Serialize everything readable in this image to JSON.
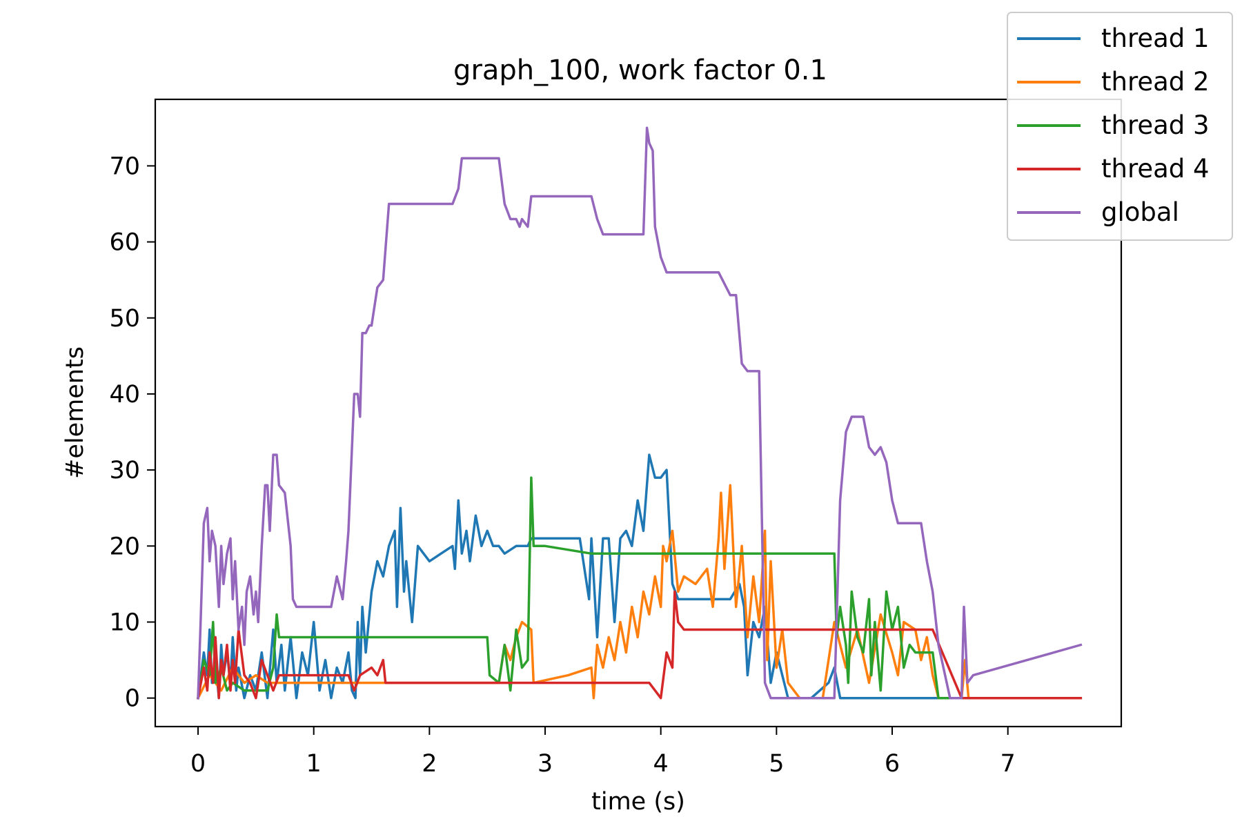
{
  "chart_data": {
    "type": "line",
    "title": "graph_100, work factor 0.1",
    "xlabel": "time (s)",
    "ylabel": "#elements",
    "xlim": [
      -0.37,
      7.98
    ],
    "ylim": [
      -3.75,
      78.75
    ],
    "xticks": [
      0,
      1,
      2,
      3,
      4,
      5,
      6,
      7
    ],
    "yticks": [
      0,
      10,
      20,
      30,
      40,
      50,
      60,
      70
    ],
    "grid": false,
    "legend_position": "top-right (outside axes)",
    "series": [
      {
        "name": "thread 1",
        "color": "#1f77b4",
        "x": [
          0,
          0.05,
          0.08,
          0.1,
          0.12,
          0.15,
          0.18,
          0.2,
          0.22,
          0.25,
          0.28,
          0.3,
          0.33,
          0.35,
          0.4,
          0.45,
          0.5,
          0.55,
          0.6,
          0.65,
          0.68,
          0.72,
          0.75,
          0.8,
          0.85,
          0.9,
          0.95,
          1.0,
          1.05,
          1.1,
          1.15,
          1.2,
          1.25,
          1.3,
          1.33,
          1.36,
          1.38,
          1.4,
          1.42,
          1.45,
          1.5,
          1.55,
          1.6,
          1.65,
          1.7,
          1.72,
          1.75,
          1.78,
          1.8,
          1.85,
          1.9,
          2.0,
          2.1,
          2.2,
          2.22,
          2.25,
          2.28,
          2.32,
          2.35,
          2.4,
          2.45,
          2.5,
          2.55,
          2.6,
          2.65,
          2.75,
          2.85,
          2.88,
          2.92,
          3.0,
          3.1,
          3.2,
          3.3,
          3.38,
          3.4,
          3.45,
          3.5,
          3.55,
          3.6,
          3.65,
          3.7,
          3.75,
          3.8,
          3.85,
          3.9,
          3.95,
          4.0,
          4.05,
          4.1,
          4.15,
          4.3,
          4.45,
          4.6,
          4.68,
          4.72,
          4.75,
          4.8,
          4.85,
          4.9,
          4.95,
          5.0,
          5.1,
          5.3,
          5.45,
          5.5,
          5.55,
          5.6,
          5.7,
          5.8,
          5.9,
          6.0,
          6.1,
          6.2,
          6.3,
          6.4,
          7.63
        ],
        "y": [
          0,
          6,
          3,
          9,
          2,
          5,
          0,
          7,
          3,
          6,
          2,
          8,
          1,
          4,
          0,
          3,
          1,
          6,
          0,
          9,
          2,
          7,
          1,
          8,
          0,
          6,
          3,
          10,
          1,
          5,
          0,
          4,
          2,
          6,
          1,
          0,
          10,
          3,
          12,
          6,
          14,
          18,
          16,
          20,
          22,
          12,
          25,
          14,
          18,
          10,
          20,
          18,
          19,
          20,
          17,
          26,
          19,
          22,
          18,
          24,
          20,
          22,
          20,
          20,
          19,
          20,
          20,
          21,
          21,
          21,
          21,
          21,
          21,
          13,
          21,
          8,
          21,
          21,
          10,
          21,
          22,
          20,
          26,
          22,
          32,
          29,
          29,
          30,
          15,
          13,
          13,
          13,
          13,
          15,
          12,
          3,
          10,
          8,
          12,
          2,
          6,
          0,
          0,
          2,
          4,
          0,
          0,
          0,
          0,
          0,
          0,
          0,
          0,
          0,
          0,
          0
        ]
      },
      {
        "name": "thread 2",
        "color": "#ff7f0e",
        "x": [
          0,
          0.1,
          0.2,
          0.3,
          0.4,
          0.5,
          0.6,
          0.65,
          0.8,
          1.0,
          1.2,
          1.4,
          1.6,
          1.8,
          2.0,
          2.5,
          2.6,
          2.62,
          2.65,
          2.7,
          2.75,
          2.8,
          2.88,
          2.9,
          3.2,
          3.4,
          3.42,
          3.45,
          3.5,
          3.55,
          3.6,
          3.65,
          3.7,
          3.75,
          3.8,
          3.85,
          3.9,
          3.95,
          4.0,
          4.02,
          4.05,
          4.1,
          4.15,
          4.2,
          4.3,
          4.4,
          4.45,
          4.5,
          4.52,
          4.55,
          4.6,
          4.65,
          4.7,
          4.75,
          4.8,
          4.85,
          4.9,
          4.92,
          4.95,
          5.0,
          5.05,
          5.1,
          5.2,
          5.4,
          5.5,
          5.6,
          5.7,
          5.8,
          5.9,
          6.0,
          6.05,
          6.1,
          6.2,
          6.25,
          6.3,
          6.35,
          6.4,
          6.5,
          6.6,
          6.63,
          6.66,
          7.63
        ],
        "y": [
          0,
          3,
          1,
          4,
          2,
          3,
          2,
          2,
          2,
          2,
          2,
          2,
          2,
          2,
          2,
          2,
          2,
          4,
          7,
          5,
          8,
          10,
          9,
          2,
          3,
          4,
          0,
          7,
          4,
          8,
          5,
          10,
          6,
          12,
          8,
          14,
          11,
          16,
          12,
          20,
          18,
          22,
          14,
          16,
          15,
          17,
          12,
          21,
          27,
          17,
          28,
          12,
          20,
          8,
          16,
          10,
          22,
          5,
          18,
          4,
          9,
          2,
          0,
          0,
          10,
          4,
          9,
          2,
          11,
          6,
          3,
          10,
          9,
          5,
          8,
          3,
          0,
          0,
          0,
          5,
          0,
          0
        ]
      },
      {
        "name": "thread 3",
        "color": "#2ca02c",
        "x": [
          0,
          0.05,
          0.1,
          0.13,
          0.15,
          0.2,
          0.25,
          0.3,
          0.4,
          0.5,
          0.6,
          0.65,
          0.68,
          0.7,
          0.75,
          0.8,
          1.0,
          1.5,
          2.0,
          2.5,
          2.52,
          2.6,
          2.65,
          2.7,
          2.75,
          2.8,
          2.85,
          2.88,
          2.9,
          2.92,
          3.0,
          3.2,
          3.4,
          3.5,
          4.0,
          4.5,
          5.0,
          5.45,
          5.5,
          5.52,
          5.55,
          5.6,
          5.62,
          5.65,
          5.7,
          5.75,
          5.8,
          5.82,
          5.85,
          5.9,
          5.95,
          6.0,
          6.05,
          6.1,
          6.15,
          6.2,
          6.3,
          6.35,
          6.4,
          6.5,
          6.6,
          6.65,
          7.63
        ],
        "y": [
          0,
          5,
          3,
          10,
          2,
          4,
          1,
          2,
          1,
          1,
          1,
          4,
          11,
          8,
          8,
          8,
          8,
          8,
          8,
          8,
          3,
          2,
          7,
          1,
          9,
          4,
          5,
          29,
          20,
          20,
          20,
          19.5,
          19,
          19,
          19,
          19,
          19,
          19,
          19,
          8,
          12,
          7,
          2,
          14,
          8,
          6,
          13,
          3,
          10,
          1,
          14,
          9,
          12,
          4,
          7,
          6,
          6,
          6,
          0,
          0,
          0,
          0,
          0
        ]
      },
      {
        "name": "thread 4",
        "color": "#d62728",
        "x": [
          0,
          0.05,
          0.08,
          0.1,
          0.13,
          0.15,
          0.18,
          0.2,
          0.22,
          0.25,
          0.28,
          0.3,
          0.32,
          0.35,
          0.4,
          0.45,
          0.5,
          0.55,
          0.6,
          0.65,
          0.7,
          1.0,
          1.3,
          1.35,
          1.4,
          1.5,
          1.55,
          1.6,
          1.62,
          2.0,
          3.0,
          3.5,
          3.9,
          4.0,
          4.05,
          4.1,
          4.12,
          4.15,
          4.2,
          4.5,
          5.0,
          5.5,
          5.6,
          5.65,
          6.0,
          6.3,
          6.35,
          6.6,
          7.63
        ],
        "y": [
          0,
          4,
          1,
          6,
          2,
          8,
          0,
          5,
          3,
          7,
          1,
          5,
          2,
          9,
          3,
          2,
          0,
          5,
          3,
          1,
          3,
          3,
          3,
          1,
          3,
          4,
          3,
          5,
          2,
          2,
          2,
          2,
          2,
          0,
          6,
          4,
          14,
          10,
          9,
          9,
          9,
          9,
          9,
          9,
          9,
          9,
          9,
          0,
          0
        ]
      },
      {
        "name": "global",
        "color": "#9467bd",
        "x": [
          0,
          0.02,
          0.05,
          0.08,
          0.1,
          0.12,
          0.15,
          0.18,
          0.2,
          0.22,
          0.25,
          0.28,
          0.3,
          0.32,
          0.35,
          0.38,
          0.4,
          0.42,
          0.45,
          0.48,
          0.5,
          0.52,
          0.55,
          0.58,
          0.6,
          0.62,
          0.65,
          0.68,
          0.7,
          0.75,
          0.8,
          0.82,
          0.85,
          0.88,
          0.9,
          0.95,
          1.0,
          1.05,
          1.1,
          1.15,
          1.2,
          1.25,
          1.28,
          1.3,
          1.35,
          1.38,
          1.4,
          1.42,
          1.45,
          1.48,
          1.5,
          1.55,
          1.6,
          1.65,
          1.7,
          1.75,
          1.78,
          1.8,
          2.0,
          2.2,
          2.25,
          2.28,
          2.3,
          2.4,
          2.5,
          2.6,
          2.65,
          2.7,
          2.75,
          2.78,
          2.8,
          2.85,
          2.88,
          2.9,
          2.95,
          3.0,
          3.2,
          3.4,
          3.45,
          3.5,
          3.6,
          3.7,
          3.8,
          3.85,
          3.88,
          3.9,
          3.93,
          3.95,
          4.0,
          4.05,
          4.1,
          4.15,
          4.2,
          4.4,
          4.5,
          4.6,
          4.65,
          4.7,
          4.75,
          4.8,
          4.85,
          4.9,
          4.95,
          5.0,
          5.05,
          5.1,
          5.3,
          5.45,
          5.5,
          5.55,
          5.6,
          5.65,
          5.7,
          5.75,
          5.8,
          5.85,
          5.9,
          5.95,
          6.0,
          6.05,
          6.1,
          6.2,
          6.25,
          6.3,
          6.35,
          6.4,
          6.5,
          6.55,
          6.6,
          6.62,
          6.65,
          6.7,
          7.63
        ],
        "y": [
          0,
          9,
          23,
          25,
          18,
          22,
          20,
          12,
          20,
          15,
          19,
          21,
          13,
          18,
          9,
          12,
          7,
          14,
          16,
          11,
          14,
          10,
          20,
          28,
          28,
          22,
          32,
          32,
          28,
          27,
          20,
          13,
          12,
          12,
          12,
          12,
          12,
          12,
          12,
          12,
          16,
          13,
          18,
          22,
          40,
          40,
          37,
          48,
          48,
          49,
          49,
          54,
          55,
          65,
          65,
          65,
          65,
          65,
          65,
          65,
          67,
          71,
          71,
          71,
          71,
          71,
          65,
          63,
          63,
          62,
          63,
          62,
          66,
          66,
          66,
          66,
          66,
          66,
          63,
          61,
          61,
          61,
          61,
          61,
          75,
          73,
          72,
          62,
          58,
          56,
          56,
          56,
          56,
          56,
          56,
          53,
          53,
          44,
          43,
          43,
          43,
          2,
          0,
          0,
          0,
          0,
          0,
          0,
          0,
          26,
          35,
          37,
          37,
          37,
          33,
          32,
          33,
          31,
          26,
          23,
          23,
          23,
          23,
          18,
          14,
          7,
          0,
          0,
          0,
          12,
          2,
          3,
          7
        ]
      }
    ]
  }
}
